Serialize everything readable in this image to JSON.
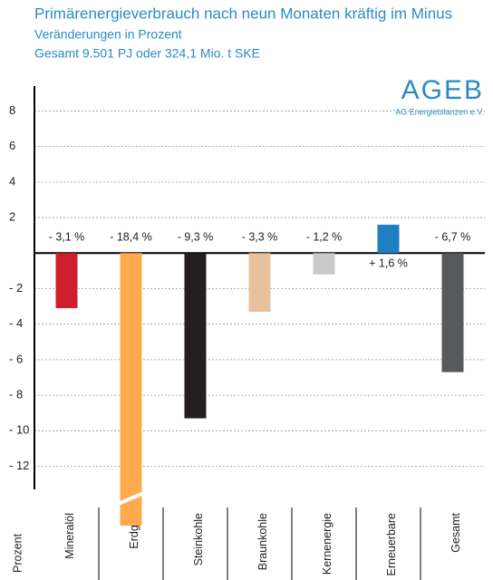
{
  "chart_data": {
    "type": "bar",
    "title": "Primärenergieverbrauch nach neun Monaten kräftig im Minus",
    "subtitle": "Veränderungen in Prozent",
    "subtitle2": "Gesamt 9.501 PJ oder 324,1 Mio. t SKE",
    "logo": "AGEB",
    "logo_sub": "AG Energiebilanzen e.V.",
    "y_label": "Prozent",
    "categories": [
      "Mineralöl",
      "Erdgas",
      "Steinkohle",
      "Braunkohle",
      "Kernenergie",
      "Erneuerbare",
      "Gesamt"
    ],
    "values": [
      -3.1,
      -18.4,
      -9.3,
      -3.3,
      -1.2,
      1.6,
      -6.7
    ],
    "value_labels": [
      "- 3,1 %",
      "- 18,4 %",
      "- 9,3 %",
      "- 3,3 %",
      "- 1,2 %",
      "+ 1,6 %",
      "- 6,7 %"
    ],
    "colors": [
      "#cf1f2e",
      "#ffab4d",
      "#231f20",
      "#e7c09c",
      "#c9c9c9",
      "#1f7fc0",
      "#58595b"
    ],
    "ylim": [
      -13.3,
      9.4
    ],
    "yticks": [
      8,
      6,
      4,
      2,
      {
        "value": -2,
        "label": "- 2"
      },
      {
        "value": -4,
        "label": "- 4"
      },
      {
        "value": -6,
        "label": "- 6"
      },
      {
        "value": -8,
        "label": "- 8"
      },
      {
        "value": -10,
        "label": "- 10"
      },
      {
        "value": -12,
        "label": "- 12"
      }
    ],
    "grid": true
  }
}
